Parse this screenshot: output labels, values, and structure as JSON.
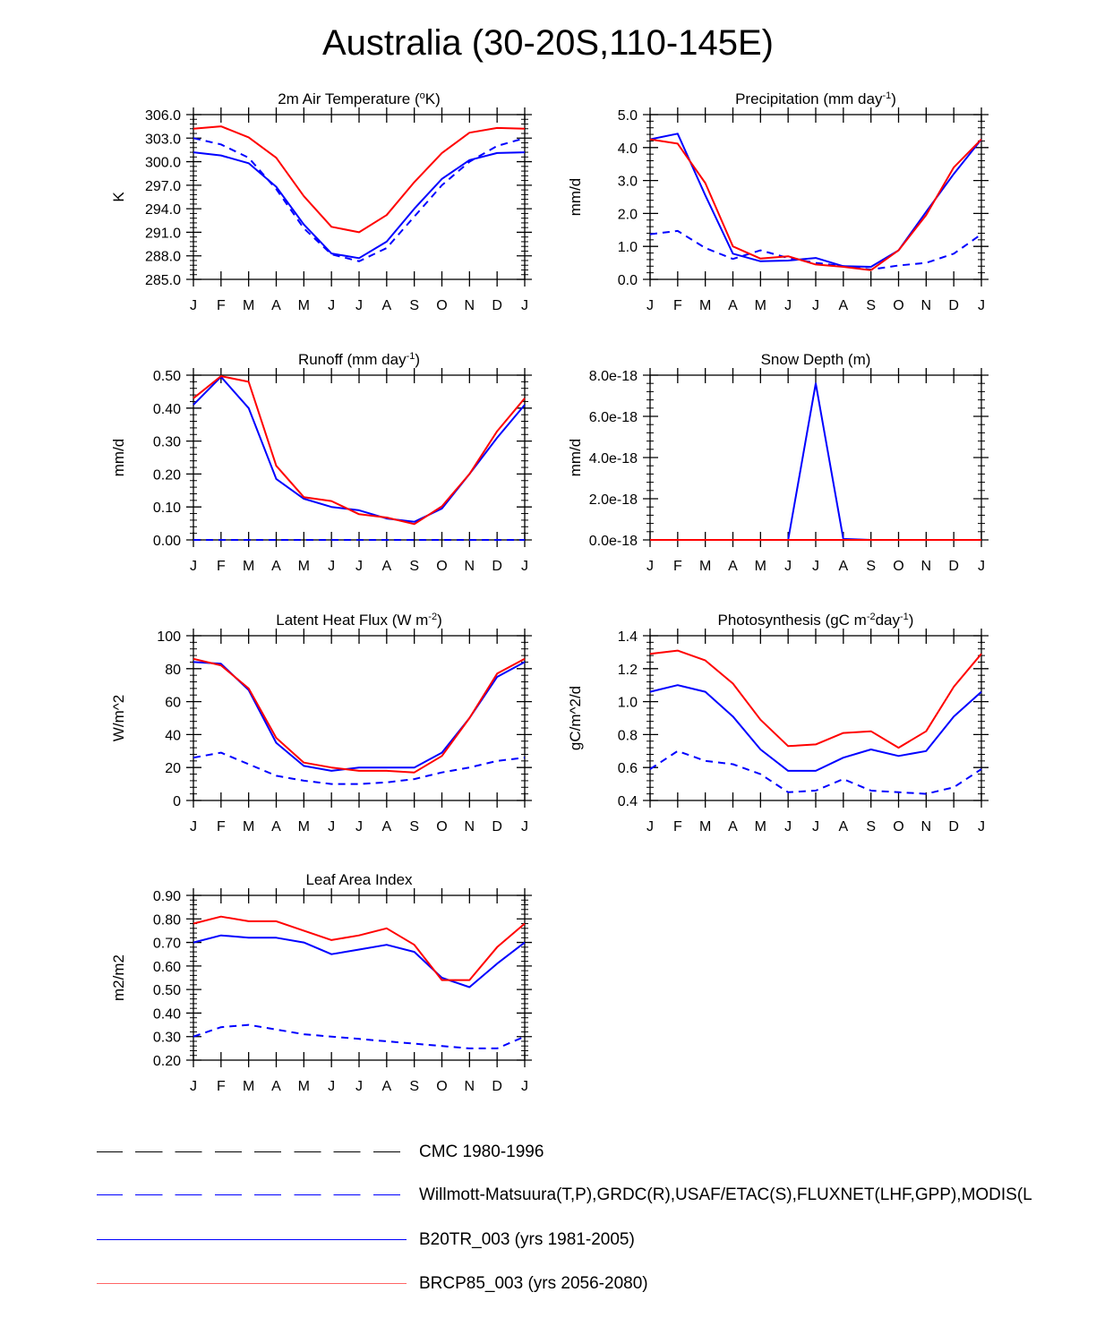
{
  "title": "Australia (30-20S,110-145E)",
  "colors": {
    "obs": "#0000ff",
    "b20tr": "#0000ff",
    "brcp85": "#ff0000",
    "cmc": "#000000"
  },
  "legend": [
    {
      "label": "CMC 1980-1996",
      "color": "#000000",
      "dash": "dashed"
    },
    {
      "label": "Willmott-Matsuura(T,P),GRDC(R),USAF/ETAC(S),FLUXNET(LHF,GPP),MODIS(L",
      "color": "#0000ff",
      "dash": "dashed"
    },
    {
      "label": "B20TR_003 (yrs 1981-2005)",
      "color": "#0000ff",
      "dash": "solid"
    },
    {
      "label": "BRCP85_003 (yrs 2056-2080)",
      "color": "#ff0000",
      "dash": "solid"
    }
  ],
  "chart_data": [
    {
      "type": "line",
      "title": "2m Air Temperature (°K)",
      "title_parts": [
        "2m Air Temperature (",
        "o",
        "K)"
      ],
      "title_sup_index": 1,
      "ylabel": "K",
      "categories": [
        "J",
        "F",
        "M",
        "A",
        "M",
        "J",
        "J",
        "A",
        "S",
        "O",
        "N",
        "D",
        "J"
      ],
      "ylim": [
        285.0,
        306.0
      ],
      "yticks": [
        "285.0",
        "288.0",
        "291.0",
        "294.0",
        "297.0",
        "300.0",
        "303.0",
        "306.0"
      ],
      "ytick_values": [
        285,
        288,
        291,
        294,
        297,
        300,
        303,
        306
      ],
      "series": [
        {
          "name": "Willmott-Matsuura(T,P),GRDC(R),USAF/ETAC(S),FLUXNET(LHF,GPP),MODIS(L",
          "style": "dashed",
          "color": "#0000ff",
          "values": [
            303.0,
            302.2,
            300.5,
            296.5,
            291.5,
            288.2,
            287.3,
            289.0,
            293.0,
            297.0,
            300.0,
            302.0,
            303.0
          ]
        },
        {
          "name": "B20TR_003 (yrs 1981-2005)",
          "style": "solid",
          "color": "#0000ff",
          "values": [
            301.2,
            300.8,
            299.8,
            296.8,
            292.0,
            288.3,
            287.7,
            289.8,
            294.0,
            297.8,
            300.2,
            301.1,
            301.2
          ]
        },
        {
          "name": "BRCP85_003 (yrs 2056-2080)",
          "style": "solid",
          "color": "#ff0000",
          "values": [
            304.2,
            304.5,
            303.1,
            300.5,
            295.6,
            291.7,
            291.0,
            293.2,
            297.4,
            301.1,
            303.7,
            304.3,
            304.2
          ]
        }
      ]
    },
    {
      "type": "line",
      "title": "Precipitation (mm day-1)",
      "title_parts": [
        "Precipitation (mm day",
        "-1",
        ")"
      ],
      "title_sup_index": 1,
      "ylabel": "mm/d",
      "categories": [
        "J",
        "F",
        "M",
        "A",
        "M",
        "J",
        "J",
        "A",
        "S",
        "O",
        "N",
        "D",
        "J"
      ],
      "ylim": [
        0.0,
        5.0
      ],
      "yticks": [
        "0.0",
        "1.0",
        "2.0",
        "3.0",
        "4.0",
        "5.0"
      ],
      "ytick_values": [
        0,
        1,
        2,
        3,
        4,
        5
      ],
      "series": [
        {
          "name": "Willmott-Matsuura(T,P),GRDC(R),USAF/ETAC(S),FLUXNET(LHF,GPP),MODIS(L",
          "style": "dashed",
          "color": "#0000ff",
          "values": [
            1.37,
            1.47,
            0.95,
            0.62,
            0.88,
            0.65,
            0.5,
            0.4,
            0.3,
            0.42,
            0.5,
            0.78,
            1.37
          ]
        },
        {
          "name": "B20TR_003 (yrs 1981-2005)",
          "style": "solid",
          "color": "#0000ff",
          "values": [
            4.25,
            4.42,
            2.55,
            0.78,
            0.55,
            0.57,
            0.65,
            0.4,
            0.38,
            0.88,
            2.05,
            3.2,
            4.25
          ]
        },
        {
          "name": "BRCP85_003 (yrs 2056-2080)",
          "style": "solid",
          "color": "#ff0000",
          "values": [
            4.25,
            4.12,
            2.92,
            1.0,
            0.63,
            0.7,
            0.45,
            0.38,
            0.28,
            0.88,
            1.95,
            3.4,
            4.25
          ]
        }
      ]
    },
    {
      "type": "line",
      "title": "Runoff (mm day-1)",
      "title_parts": [
        "Runoff (mm day",
        "-1",
        ")"
      ],
      "title_sup_index": 1,
      "ylabel": "mm/d",
      "categories": [
        "J",
        "F",
        "M",
        "A",
        "M",
        "J",
        "J",
        "A",
        "S",
        "O",
        "N",
        "D",
        "J"
      ],
      "ylim": [
        0.0,
        0.5
      ],
      "yticks": [
        "0.00",
        "0.10",
        "0.20",
        "0.30",
        "0.40",
        "0.50"
      ],
      "ytick_values": [
        0,
        0.1,
        0.2,
        0.3,
        0.4,
        0.5
      ],
      "series": [
        {
          "name": "Willmott-Matsuura(T,P),GRDC(R),USAF/ETAC(S),FLUXNET(LHF,GPP),MODIS(L",
          "style": "dashed",
          "color": "#0000ff",
          "values": [
            0,
            0,
            0,
            0,
            0,
            0,
            0,
            0,
            0,
            0,
            0,
            0,
            0
          ]
        },
        {
          "name": "B20TR_003 (yrs 1981-2005)",
          "style": "solid",
          "color": "#0000ff",
          "values": [
            0.41,
            0.495,
            0.4,
            0.185,
            0.125,
            0.1,
            0.09,
            0.065,
            0.055,
            0.095,
            0.2,
            0.31,
            0.41
          ]
        },
        {
          "name": "BRCP85_003 (yrs 2056-2080)",
          "style": "solid",
          "color": "#ff0000",
          "values": [
            0.43,
            0.497,
            0.48,
            0.225,
            0.13,
            0.118,
            0.078,
            0.068,
            0.048,
            0.102,
            0.2,
            0.33,
            0.43
          ]
        }
      ]
    },
    {
      "type": "line",
      "title": "Snow Depth (m)",
      "title_parts": [
        "Snow Depth (m)",
        "",
        ""
      ],
      "title_sup_index": 1,
      "ylabel": "mm/d",
      "categories": [
        "J",
        "F",
        "M",
        "A",
        "M",
        "J",
        "J",
        "A",
        "S",
        "O",
        "N",
        "D",
        "J"
      ],
      "ylim": [
        0.0,
        8e-18
      ],
      "yticks": [
        "0.0e-18",
        "2.0e-18",
        "4.0e-18",
        "6.0e-18",
        "8.0e-18"
      ],
      "ytick_values": [
        0,
        2e-18,
        4e-18,
        6e-18,
        8e-18
      ],
      "series": [
        {
          "name": "B20TR_003 (yrs 1981-2005)",
          "style": "solid",
          "color": "#0000ff",
          "values": [
            0,
            0,
            0,
            0,
            0,
            0,
            7.6e-18,
            5e-20,
            0,
            0,
            0,
            0,
            0
          ]
        },
        {
          "name": "BRCP85_003 (yrs 2056-2080)",
          "style": "solid",
          "color": "#ff0000",
          "values": [
            0,
            0,
            0,
            0,
            0,
            0,
            0,
            0,
            0,
            0,
            0,
            0,
            0
          ]
        }
      ]
    },
    {
      "type": "line",
      "title": "Latent Heat Flux (W m-2)",
      "title_parts": [
        "Latent Heat Flux (W m",
        "-2",
        ")"
      ],
      "title_sup_index": 1,
      "ylabel": "W/m^2",
      "categories": [
        "J",
        "F",
        "M",
        "A",
        "M",
        "J",
        "J",
        "A",
        "S",
        "O",
        "N",
        "D",
        "J"
      ],
      "ylim": [
        0,
        100
      ],
      "yticks": [
        "0",
        "20",
        "40",
        "60",
        "80",
        "100"
      ],
      "ytick_values": [
        0,
        20,
        40,
        60,
        80,
        100
      ],
      "series": [
        {
          "name": "Willmott-Matsuura(T,P),GRDC(R),USAF/ETAC(S),FLUXNET(LHF,GPP),MODIS(L",
          "style": "dashed",
          "color": "#0000ff",
          "values": [
            26,
            29,
            22,
            15,
            12,
            10,
            10,
            11,
            13,
            17,
            20,
            24,
            26
          ]
        },
        {
          "name": "B20TR_003 (yrs 1981-2005)",
          "style": "solid",
          "color": "#0000ff",
          "values": [
            84,
            83,
            67,
            35,
            21,
            18,
            20,
            20,
            20,
            29,
            50,
            75,
            84
          ]
        },
        {
          "name": "BRCP85_003 (yrs 2056-2080)",
          "style": "solid",
          "color": "#ff0000",
          "values": [
            86,
            82,
            68,
            38,
            23,
            20,
            18,
            18,
            17,
            27,
            50,
            77,
            86
          ]
        }
      ]
    },
    {
      "type": "line",
      "title": "Photosynthesis (gC m-2day-1)",
      "title_parts": [
        "Photosynthesis (gC m",
        "-2",
        "day",
        "-1",
        ")"
      ],
      "title_sup_index": 1,
      "ylabel": "gC/m^2/d",
      "categories": [
        "J",
        "F",
        "M",
        "A",
        "M",
        "J",
        "J",
        "A",
        "S",
        "O",
        "N",
        "D",
        "J"
      ],
      "ylim": [
        0.4,
        1.4
      ],
      "yticks": [
        "0.4",
        "0.6",
        "0.8",
        "1.0",
        "1.2",
        "1.4"
      ],
      "ytick_values": [
        0.4,
        0.6,
        0.8,
        1.0,
        1.2,
        1.4
      ],
      "series": [
        {
          "name": "Willmott-Matsuura(T,P),GRDC(R),USAF/ETAC(S),FLUXNET(LHF,GPP),MODIS(L",
          "style": "dashed",
          "color": "#0000ff",
          "values": [
            0.59,
            0.7,
            0.64,
            0.62,
            0.56,
            0.45,
            0.46,
            0.53,
            0.46,
            0.45,
            0.44,
            0.48,
            0.59
          ]
        },
        {
          "name": "B20TR_003 (yrs 1981-2005)",
          "style": "solid",
          "color": "#0000ff",
          "values": [
            1.06,
            1.1,
            1.06,
            0.91,
            0.71,
            0.58,
            0.58,
            0.66,
            0.71,
            0.67,
            0.7,
            0.91,
            1.06
          ]
        },
        {
          "name": "BRCP85_003 (yrs 2056-2080)",
          "style": "solid",
          "color": "#ff0000",
          "values": [
            1.29,
            1.31,
            1.25,
            1.11,
            0.89,
            0.73,
            0.74,
            0.81,
            0.82,
            0.72,
            0.82,
            1.09,
            1.29
          ]
        }
      ]
    },
    {
      "type": "line",
      "title": "Leaf Area Index",
      "title_parts": [
        "Leaf Area Index",
        "",
        ""
      ],
      "title_sup_index": 1,
      "ylabel": "m2/m2",
      "categories": [
        "J",
        "F",
        "M",
        "A",
        "M",
        "J",
        "J",
        "A",
        "S",
        "O",
        "N",
        "D",
        "J"
      ],
      "ylim": [
        0.2,
        0.9
      ],
      "yticks": [
        "0.20",
        "0.30",
        "0.40",
        "0.50",
        "0.60",
        "0.70",
        "0.80",
        "0.90"
      ],
      "ytick_values": [
        0.2,
        0.3,
        0.4,
        0.5,
        0.6,
        0.7,
        0.8,
        0.9
      ],
      "series": [
        {
          "name": "Willmott-Matsuura(T,P),GRDC(R),USAF/ETAC(S),FLUXNET(LHF,GPP),MODIS(L",
          "style": "dashed",
          "color": "#0000ff",
          "values": [
            0.3,
            0.34,
            0.35,
            0.33,
            0.31,
            0.3,
            0.29,
            0.28,
            0.27,
            0.26,
            0.25,
            0.25,
            0.3
          ]
        },
        {
          "name": "B20TR_003 (yrs 1981-2005)",
          "style": "solid",
          "color": "#0000ff",
          "values": [
            0.7,
            0.73,
            0.72,
            0.72,
            0.7,
            0.65,
            0.67,
            0.69,
            0.66,
            0.55,
            0.51,
            0.61,
            0.7
          ]
        },
        {
          "name": "BRCP85_003 (yrs 2056-2080)",
          "style": "solid",
          "color": "#ff0000",
          "values": [
            0.78,
            0.81,
            0.79,
            0.79,
            0.75,
            0.71,
            0.73,
            0.76,
            0.69,
            0.54,
            0.54,
            0.68,
            0.78
          ]
        }
      ]
    }
  ]
}
